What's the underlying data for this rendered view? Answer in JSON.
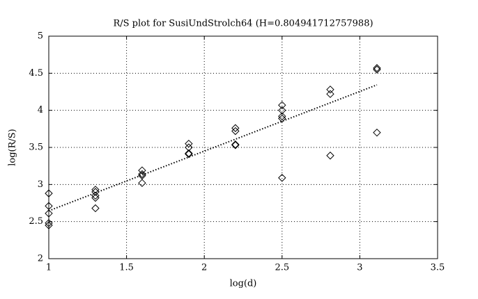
{
  "chart_data": {
    "type": "scatter",
    "title": "R/S plot for SusiUndStrolch64 (H=0.804941712757988)",
    "x_label": "log(d)",
    "y_label": "log(R/S)",
    "xlim": [
      1,
      3.5
    ],
    "ylim": [
      2,
      5
    ],
    "xticks": [
      1,
      1.5,
      2,
      2.5,
      3,
      3.5
    ],
    "yticks": [
      2,
      2.5,
      3,
      3.5,
      4,
      4.5,
      5
    ],
    "grid": true,
    "series": [
      {
        "type": "scatter",
        "marker": "diamond",
        "color": "#000000",
        "x": [
          1,
          1,
          1,
          1,
          1,
          1.3,
          1.3,
          1.3,
          1.3,
          1.3,
          1.6,
          1.6,
          1.6,
          1.6,
          1.9,
          1.9,
          1.9,
          1.9,
          2.2,
          2.2,
          2.2,
          2.2,
          2.5,
          2.5,
          2.5,
          2.5,
          2.5,
          2.81,
          2.81,
          2.81,
          3.11,
          3.11,
          3.11
        ],
        "values": [
          2.88,
          2.71,
          2.61,
          2.48,
          2.45,
          2.93,
          2.9,
          2.85,
          2.82,
          2.68,
          3.19,
          3.14,
          3.12,
          3.02,
          3.55,
          3.5,
          3.42,
          3.41,
          3.76,
          3.72,
          3.54,
          3.53,
          4.07,
          4.0,
          3.92,
          3.89,
          3.09,
          4.28,
          4.22,
          3.39,
          4.57,
          4.55,
          3.7
        ]
      },
      {
        "type": "line",
        "style": "dotted",
        "color": "#000000",
        "x": [
          1,
          3.11
        ],
        "values": [
          2.645,
          4.343
        ]
      }
    ]
  }
}
